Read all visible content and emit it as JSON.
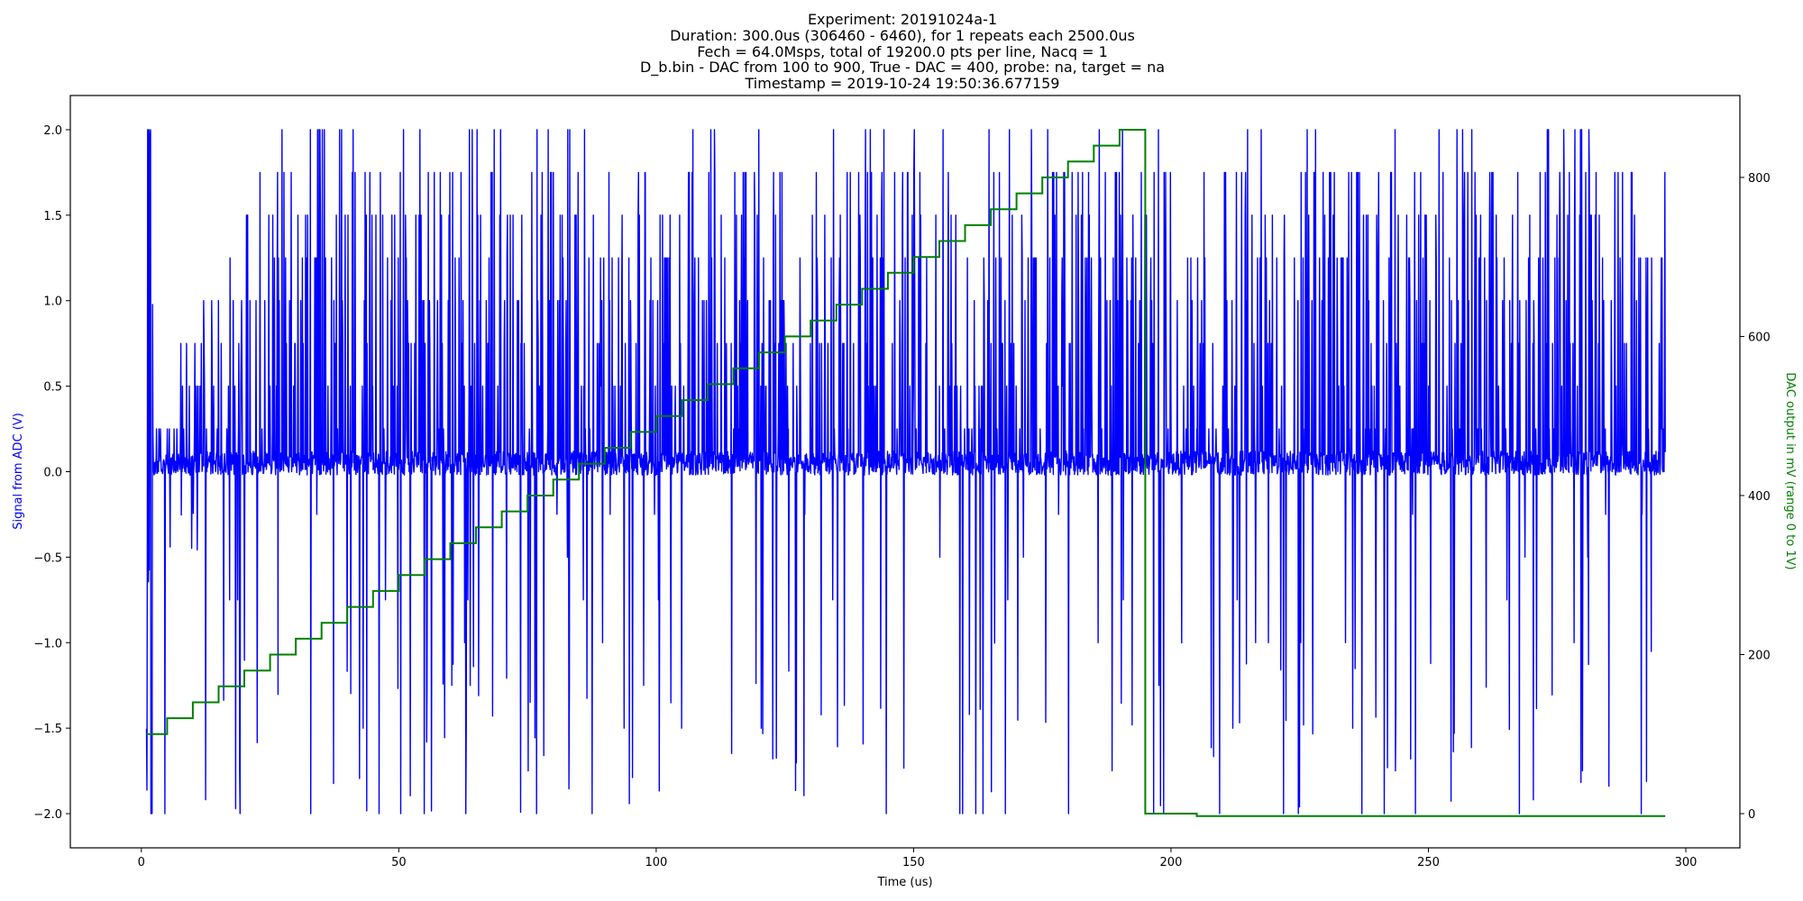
{
  "chart_data": {
    "type": "line",
    "title_lines": [
      "Experiment: 20191024a-1",
      "Duration: 300.0us (306460 - 6460), for 1 repeats each 2500.0us",
      "Fech = 64.0Msps, total of 19200.0 pts per line, Nacq = 1",
      "D_b.bin - DAC from 100 to 900, True - DAC = 400, probe: na, target = na",
      "Timestamp = 2019-10-24 19:50:36.677159"
    ],
    "xlabel": "Time (us)",
    "ylabel_left": "Signal from ADC (V)",
    "ylabel_right": "DAC output in mV (range 0 to 1V)",
    "xlim": [
      -13.8,
      310.5
    ],
    "ylim_left": [
      -2.2,
      2.2
    ],
    "ylim_right": [
      -43,
      903
    ],
    "x_ticks": [
      0,
      50,
      100,
      150,
      200,
      250,
      300
    ],
    "y_ticks_left": [
      -2.0,
      -1.5,
      -1.0,
      -0.5,
      0.0,
      0.5,
      1.0,
      1.5,
      2.0
    ],
    "y_ticks_left_labels": [
      "−2.0",
      "−1.5",
      "−1.0",
      "−0.5",
      "0.0",
      "0.5",
      "1.0",
      "1.5",
      "2.0"
    ],
    "y_ticks_right": [
      0,
      200,
      400,
      600,
      800
    ],
    "grid": false,
    "colors": {
      "adc": "#0000ff",
      "dac": "#008000",
      "axes": "#000000"
    },
    "series": [
      {
        "axis": "right",
        "color": "#008000",
        "step": true,
        "x": [
          1,
          5,
          10,
          15,
          20,
          25,
          30,
          35,
          40,
          45,
          50,
          55,
          60,
          65,
          70,
          75,
          80,
          85,
          90,
          95,
          100,
          105,
          110,
          115,
          120,
          125,
          130,
          135,
          140,
          145,
          150,
          155,
          160,
          165,
          170,
          175,
          180,
          185,
          190,
          195,
          205,
          296
        ],
        "values": [
          100,
          120,
          140,
          160,
          180,
          200,
          220,
          240,
          260,
          280,
          300,
          320,
          340,
          360,
          380,
          400,
          420,
          440,
          460,
          480,
          500,
          520,
          540,
          560,
          580,
          600,
          620,
          640,
          660,
          680,
          700,
          720,
          740,
          760,
          780,
          800,
          820,
          840,
          860,
          0,
          -3,
          -3
        ]
      },
      {
        "axis": "left",
        "color": "#0000ff",
        "x_range": [
          1,
          296
        ],
        "baseline_band": [
          -0.02,
          0.12
        ],
        "values_range": [
          -2.0,
          2.0
        ],
        "note_type": "dense_noisy_signal"
      }
    ]
  }
}
